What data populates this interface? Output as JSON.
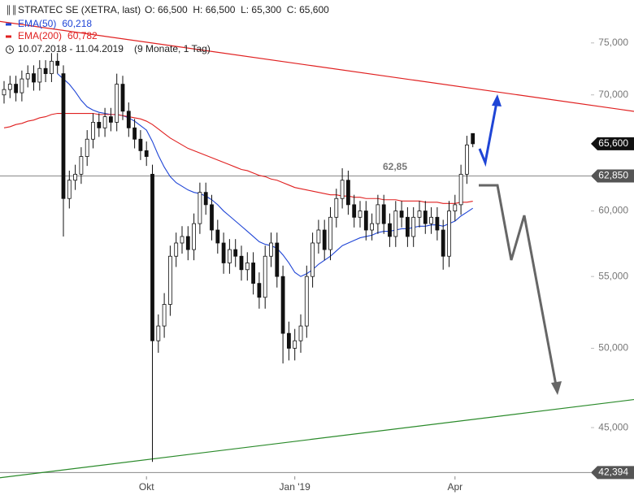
{
  "chart_data": {
    "type": "candlestick",
    "title": "STRATEC SE (XETRA, last)",
    "ohlc_text": "O: 66,500  H: 66,500  L: 65,300  C: 65,600",
    "period": "10.07.2018 - 11.04.2019",
    "period_note": "(9 Monate, 1 Tag)",
    "annotation": "62,85",
    "log_scale": true,
    "ylim": [
      42000,
      79400
    ],
    "yticks": [
      {
        "value": 45000,
        "label": "45,000"
      },
      {
        "value": 50000,
        "label": "50,000"
      },
      {
        "value": 55000,
        "label": "55,000"
      },
      {
        "value": 60000,
        "label": "60,000"
      },
      {
        "value": 70000,
        "label": "70,000"
      },
      {
        "value": 75000,
        "label": "75,000"
      }
    ],
    "categories": [
      null,
      null,
      null,
      null,
      null,
      null,
      null,
      null,
      null,
      null,
      null,
      null,
      null,
      null,
      null,
      null,
      null,
      null,
      null,
      null,
      null,
      null,
      null,
      null,
      "Okt",
      null,
      null,
      null,
      null,
      null,
      null,
      null,
      null,
      null,
      null,
      null,
      null,
      null,
      null,
      null,
      null,
      null,
      null,
      null,
      null,
      null,
      null,
      null,
      null,
      "Jan '19",
      null,
      null,
      null,
      null,
      null,
      null,
      null,
      null,
      null,
      null,
      null,
      null,
      null,
      null,
      null,
      null,
      null,
      null,
      null,
      null,
      null,
      null,
      null,
      null,
      null,
      null,
      "Apr",
      null,
      null,
      null
    ],
    "open": [
      70000,
      70500,
      71000,
      70200,
      71500,
      72000,
      71200,
      72500,
      72000,
      73200,
      72000,
      61000,
      62500,
      63000,
      64500,
      66000,
      67500,
      67000,
      68000,
      67500,
      71000,
      68500,
      67000,
      66000,
      65000,
      63000,
      50500,
      51500,
      53000,
      56500,
      57500,
      58000,
      57000,
      59000,
      61500,
      60500,
      58500,
      57500,
      56000,
      57000,
      56500,
      55500,
      56000,
      54500,
      53500,
      56500,
      57500,
      55000,
      51000,
      50000,
      50500,
      51500,
      55000,
      57500,
      58500,
      57000,
      59500,
      61000,
      62500,
      60500,
      59500,
      60000,
      58500,
      59000,
      60500,
      59000,
      58000,
      60000,
      59500,
      58000,
      59500,
      60000,
      59000,
      59500,
      58500,
      56500,
      60000,
      60500,
      63000,
      66500
    ],
    "high": [
      71300,
      71800,
      71800,
      72300,
      72800,
      72800,
      73300,
      73300,
      74000,
      74000,
      72800,
      63300,
      63800,
      65300,
      66800,
      68300,
      68300,
      68800,
      68800,
      72000,
      71800,
      69300,
      67800,
      66800,
      65800,
      63800,
      52300,
      53800,
      57300,
      58300,
      58800,
      58800,
      59800,
      62300,
      62300,
      61300,
      59300,
      58300,
      57800,
      57800,
      57300,
      56800,
      56800,
      55300,
      57300,
      58300,
      58300,
      55800,
      51800,
      51300,
      52300,
      55800,
      58300,
      59300,
      59300,
      60300,
      61800,
      63500,
      63300,
      61300,
      60800,
      60800,
      59800,
      61300,
      61300,
      59800,
      60800,
      60800,
      60300,
      60300,
      60800,
      60800,
      60300,
      60300,
      59300,
      60800,
      61300,
      63800,
      66300,
      66500
    ],
    "low": [
      69200,
      69700,
      69400,
      69400,
      70700,
      70400,
      70400,
      71200,
      71200,
      72000,
      58000,
      60200,
      61700,
      62200,
      63700,
      65200,
      66200,
      66200,
      66700,
      66700,
      67700,
      66200,
      65200,
      64200,
      63700,
      43000,
      49700,
      50700,
      52200,
      55700,
      56700,
      56200,
      56200,
      58200,
      59700,
      57700,
      56700,
      55200,
      55200,
      55700,
      54700,
      54700,
      53700,
      52700,
      52700,
      55700,
      54200,
      49000,
      49200,
      49200,
      49700,
      50700,
      54200,
      56700,
      56200,
      56200,
      58700,
      60200,
      59700,
      58700,
      58700,
      57700,
      57700,
      58200,
      58200,
      57200,
      57200,
      58700,
      57200,
      57200,
      58700,
      58200,
      58200,
      57700,
      55500,
      55700,
      59200,
      59700,
      62200,
      65300
    ],
    "close": [
      70500,
      71000,
      70200,
      71500,
      72000,
      71200,
      72500,
      72000,
      73200,
      72800,
      61000,
      62500,
      63000,
      64500,
      66000,
      67500,
      67000,
      68000,
      67500,
      71000,
      68500,
      67000,
      66000,
      65000,
      64500,
      50500,
      51500,
      53000,
      56500,
      57500,
      58000,
      57000,
      59000,
      61500,
      60500,
      58500,
      57500,
      56000,
      57000,
      56500,
      55500,
      56000,
      54500,
      53500,
      56500,
      57500,
      55000,
      51000,
      50000,
      50500,
      51500,
      55000,
      57500,
      58500,
      57000,
      59500,
      61000,
      62500,
      60500,
      59500,
      60000,
      58500,
      59000,
      60500,
      59000,
      58000,
      60000,
      59500,
      58000,
      59500,
      60000,
      59000,
      59500,
      58500,
      56500,
      60000,
      60500,
      63000,
      65500,
      65600
    ],
    "series": [
      {
        "name": "EMA(50)",
        "color": "#1f45d6",
        "last_label": "60,218",
        "values": [
          null,
          null,
          null,
          null,
          null,
          null,
          null,
          null,
          null,
          72000,
          71500,
          71000,
          70300,
          69500,
          68900,
          68600,
          68400,
          68300,
          68200,
          68200,
          68100,
          67900,
          67600,
          67200,
          66800,
          65800,
          64600,
          63600,
          62800,
          62300,
          62000,
          61700,
          61500,
          61400,
          61200,
          60900,
          60500,
          60000,
          59600,
          59200,
          58800,
          58400,
          58000,
          57600,
          57400,
          57300,
          57100,
          56600,
          56000,
          55300,
          55000,
          55200,
          55500,
          55900,
          56200,
          56500,
          56900,
          57300,
          57500,
          57700,
          57900,
          58000,
          58100,
          58300,
          58400,
          58400,
          58500,
          58600,
          58600,
          58700,
          58800,
          58800,
          58900,
          58900,
          58800,
          59000,
          59200,
          59600,
          59900,
          60218
        ]
      },
      {
        "name": "EMA(200)",
        "color": "#e02020",
        "last_label": "60,782",
        "values": [
          67000,
          67100,
          67300,
          67400,
          67600,
          67700,
          67900,
          68000,
          68200,
          68300,
          68300,
          68300,
          68300,
          68300,
          68300,
          68300,
          68200,
          68200,
          68200,
          68200,
          68100,
          68000,
          67900,
          67800,
          67600,
          67300,
          66900,
          66500,
          66100,
          65800,
          65500,
          65200,
          65000,
          64800,
          64600,
          64400,
          64200,
          64000,
          63800,
          63600,
          63400,
          63300,
          63100,
          62900,
          62800,
          62600,
          62500,
          62300,
          62100,
          61900,
          61800,
          61700,
          61600,
          61500,
          61400,
          61300,
          61300,
          61200,
          61200,
          61100,
          61100,
          61000,
          61000,
          61000,
          60900,
          60900,
          60900,
          60800,
          60800,
          60800,
          60800,
          60700,
          60700,
          60700,
          60600,
          60600,
          60600,
          60700,
          60700,
          60782
        ]
      }
    ],
    "trendlines": [
      {
        "color": "#e02020",
        "points": [
          [
            13,
            76000
          ],
          [
            106,
            68500
          ]
        ]
      },
      {
        "color": "#2a8a2a",
        "points": [
          [
            -0.7,
            42100
          ],
          [
            106,
            46700
          ]
        ]
      }
    ],
    "levels": [
      {
        "value": 62850,
        "label": "62,850"
      },
      {
        "value": 42394,
        "label": "42,394"
      }
    ],
    "last_price": {
      "value": 65600,
      "label": "65,600"
    }
  }
}
